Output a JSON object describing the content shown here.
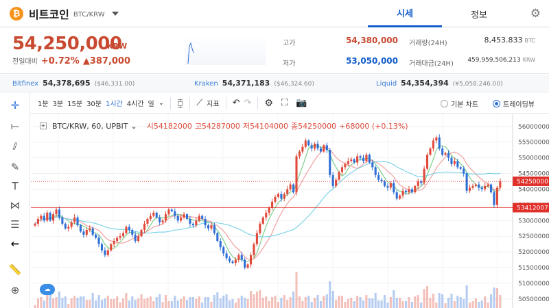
{
  "header": {
    "coin_logo": "₿",
    "coin_name": "비트코인",
    "pair": "BTC/KRW",
    "tabs": [
      {
        "label": "시세",
        "active": true
      },
      {
        "label": "정보",
        "active": false
      }
    ],
    "settings_icon": "gear-icon"
  },
  "ticker": {
    "price": "54,250,000",
    "unit": "KRW",
    "change_label": "전일대비",
    "change_pct": "+0.72%",
    "change_amt": "▲387,000",
    "high_label": "고가",
    "high_value": "54,380,000",
    "low_label": "저가",
    "low_value": "53,050,000",
    "volume_label": "거래량(24H)",
    "volume_value": "8,453.833",
    "volume_unit": "BTC",
    "amount_label": "거래대금(24H)",
    "amount_value": "459,959,506,213",
    "amount_unit": "KRW"
  },
  "exchanges": [
    {
      "name": "Bitfinex",
      "price": "54,378,695",
      "usd": "($46,331.00)"
    },
    {
      "name": "Kraken",
      "price": "54,371,183",
      "usd": "($46,324.60)"
    },
    {
      "name": "Liquid",
      "price": "54,354,394",
      "usd": "(¥5,058,246.00)"
    }
  ],
  "toolbar": {
    "intervals": [
      {
        "label": "1분",
        "active": false
      },
      {
        "label": "3분",
        "active": false
      },
      {
        "label": "15분",
        "active": false
      },
      {
        "label": "30분",
        "active": false
      },
      {
        "label": "1시간",
        "active": true
      },
      {
        "label": "4시간",
        "active": false
      },
      {
        "label": "일",
        "active": false
      }
    ],
    "indicator_label": "지표",
    "basic_chart": "기본 차트",
    "trading_view": "트레이딩뷰"
  },
  "legend": {
    "symbol": "BTC/KRW, 60, UPBIT",
    "open": "시54182000",
    "high": "고54287000",
    "low": "저54104000",
    "close": "종54250000",
    "change": "+68000 (+0.13%)"
  },
  "colors": {
    "up": "#e04a3a",
    "down": "#2f6fd6",
    "accent": "#115dcb"
  },
  "chart_data": {
    "type": "candlestick",
    "price_ticks": [
      "56000000",
      "55500000",
      "55000000",
      "54500000",
      "54000000",
      "53500000",
      "53000000",
      "52500000",
      "52000000",
      "51500000",
      "51000000",
      "50500000"
    ],
    "current_price_label": "54250000",
    "support_label": "53412007",
    "ylim": [
      50300000,
      56300000
    ],
    "support": 53412007,
    "current": 54250000,
    "closes": [
      52900000,
      53050000,
      53150000,
      53000000,
      53250000,
      53000000,
      53200000,
      53350000,
      53100000,
      52900000,
      52750000,
      52800000,
      52950000,
      53100000,
      52850000,
      52650000,
      52550000,
      52700000,
      52750000,
      52550000,
      52450000,
      52250000,
      52050000,
      51900000,
      52050000,
      52250000,
      52350000,
      52450000,
      52500000,
      52600000,
      52800000,
      52700000,
      52550000,
      52350000,
      52500000,
      52700000,
      52900000,
      53050000,
      53150000,
      53250000,
      53100000,
      52950000,
      53000000,
      53200000,
      53350000,
      53300000,
      53150000,
      53000000,
      53100000,
      53200000,
      53050000,
      52900000,
      52850000,
      53000000,
      53150000,
      53050000,
      52850000,
      52750000,
      52850000,
      52600000,
      52350000,
      52150000,
      51950000,
      51800000,
      51700000,
      51650000,
      51750000,
      51900000,
      51750000,
      51500000,
      51600000,
      51900000,
      52250000,
      52600000,
      52900000,
      53100000,
      53250000,
      53400000,
      53600000,
      53750000,
      53850000,
      53700000,
      53850000,
      54000000,
      54150000,
      53900000,
      55050000,
      55200000,
      55350000,
      55550000,
      55400000,
      55300000,
      55450000,
      55300000,
      55200000,
      55400000,
      55250000,
      54450000,
      54100000,
      54300000,
      54550000,
      54700000,
      54800000,
      54900000,
      54950000,
      54850000,
      55050000,
      55000000,
      54900000,
      55100000,
      54850000,
      54700000,
      54450000,
      54300000,
      54250000,
      54100000,
      54050000,
      54200000,
      53900000,
      53700000,
      53800000,
      53950000,
      53900000,
      54000000,
      53900000,
      54100000,
      54250000,
      54200000,
      54650000,
      55100000,
      55300000,
      55550000,
      55650000,
      55300000,
      55100000,
      55150000,
      55000000,
      54800000,
      54900000,
      54700000,
      54650000,
      54500000,
      53950000,
      54050000,
      54100000,
      54150000,
      54050000,
      54000000,
      54100000,
      54150000,
      53900000,
      53500000,
      54050000,
      54250000
    ]
  }
}
